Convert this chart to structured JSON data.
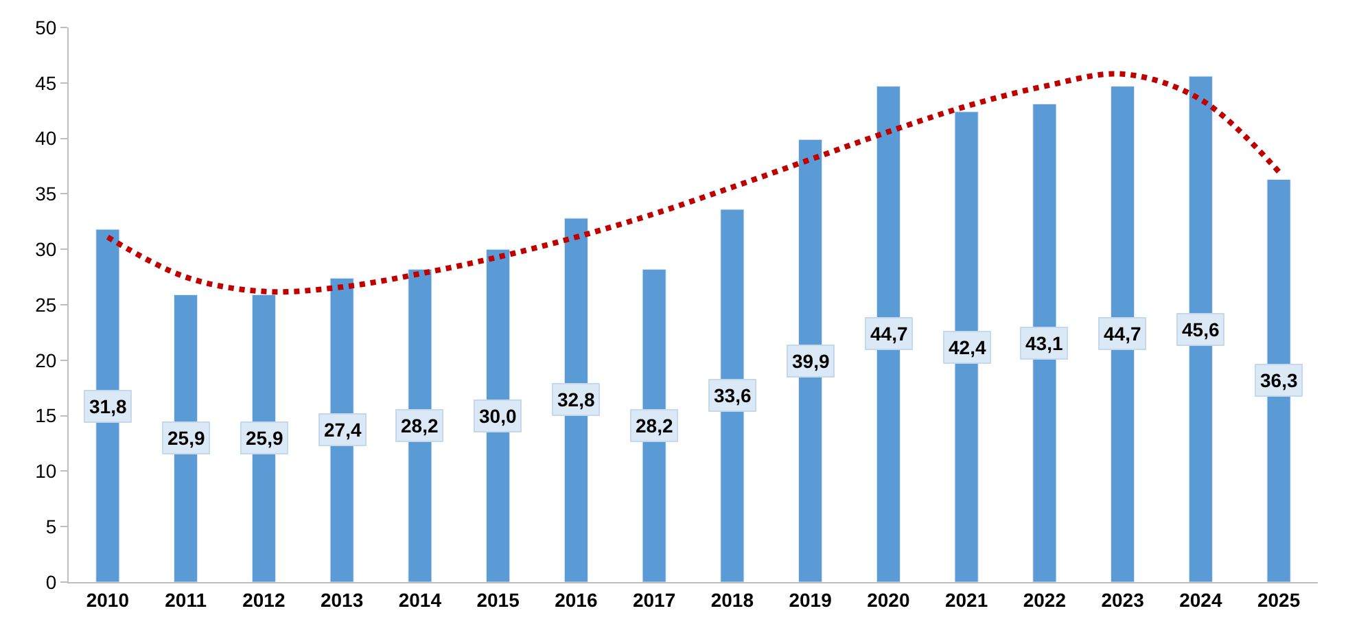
{
  "chart_data": {
    "type": "bar",
    "categories": [
      "2010",
      "2011",
      "2012",
      "2013",
      "2014",
      "2015",
      "2016",
      "2017",
      "2018",
      "2019",
      "2020",
      "2021",
      "2022",
      "2023",
      "2024",
      "2025"
    ],
    "series": [
      {
        "color": "#5b9bd5",
        "values": [
          31.8,
          25.9,
          25.9,
          27.4,
          28.2,
          30.0,
          32.8,
          28.2,
          33.6,
          39.9,
          44.7,
          42.4,
          43.1,
          44.7,
          45.6,
          36.3
        ],
        "value_labels": [
          "31,8",
          "25,9",
          "25,9",
          "27,4",
          "28,2",
          "30,0",
          "32,8",
          "28,2",
          "33,6",
          "39,9",
          "44,7",
          "42,4",
          "43,1",
          "44,7",
          "45,6",
          "36,3"
        ]
      },
      {
        "type": "line",
        "color": "#c00000",
        "line_style": "dotted",
        "values": [
          31.1,
          27.5,
          26.2,
          26.6,
          27.8,
          29.3,
          31.1,
          33.2,
          35.6,
          38.1,
          40.6,
          42.9,
          44.7,
          45.8,
          43.5,
          37.0
        ]
      }
    ],
    "ylim": [
      0,
      50
    ],
    "yticks": [
      0,
      5,
      10,
      15,
      20,
      25,
      30,
      35,
      40,
      45,
      50
    ]
  }
}
